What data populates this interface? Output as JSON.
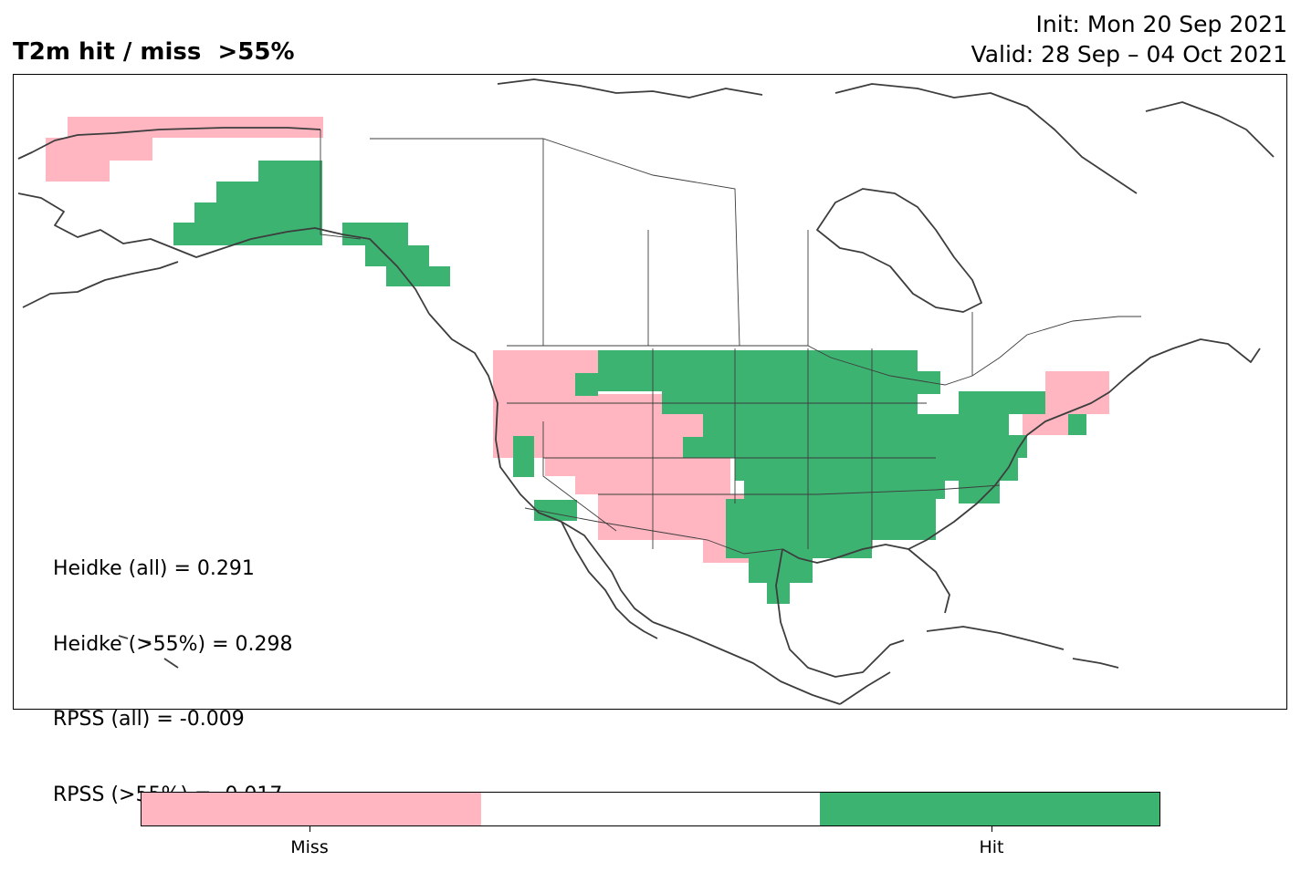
{
  "title": "T2m hit / miss  >55%",
  "init_line": "Init: Mon 20 Sep 2021",
  "valid_line": "Valid: 28 Sep – 04 Oct 2021",
  "stats": [
    "Heidke (all) = 0.291",
    "Heidke (>55%) = 0.298",
    "RPSS (all) = -0.009",
    "RPSS (>55%) = -0.017"
  ],
  "colors": {
    "miss": "#ffb6c1",
    "neutral": "#ffffff",
    "hit": "#3cb371",
    "coast": "#3d3d3d"
  },
  "legend": {
    "miss_label": "Miss",
    "hit_label": "Hit"
  }
}
